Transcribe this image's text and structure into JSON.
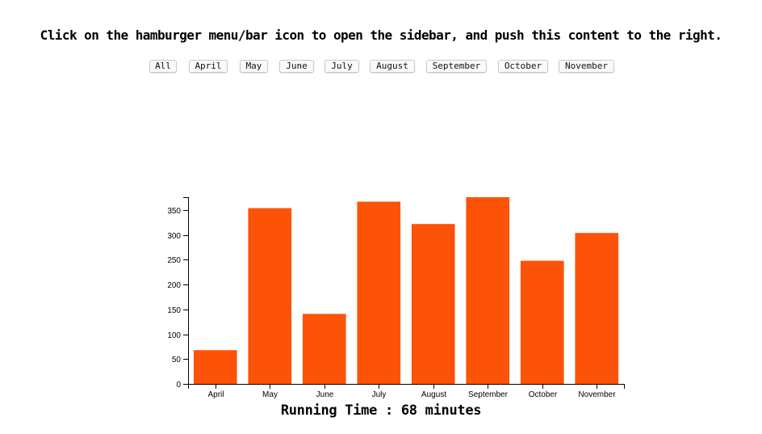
{
  "header": {
    "instruction": "Click on the hamburger menu/bar icon to open the sidebar, and push this content to the right."
  },
  "filters": {
    "buttons": [
      "All",
      "April",
      "May",
      "June",
      "July",
      "August",
      "September",
      "October",
      "November"
    ]
  },
  "footer": {
    "running_time": "Running Time : 68 minutes"
  },
  "colors": {
    "bar": "#fd5308"
  },
  "chart_data": {
    "type": "bar",
    "categories": [
      "April",
      "May",
      "June",
      "July",
      "August",
      "September",
      "October",
      "November"
    ],
    "values": [
      68,
      354,
      141,
      367,
      322,
      376,
      248,
      304
    ],
    "title": "",
    "xlabel": "",
    "ylabel": "",
    "ylim": [
      0,
      376
    ],
    "yticks": [
      0,
      50,
      100,
      150,
      200,
      250,
      300,
      350
    ],
    "grid": false,
    "legend": "none"
  }
}
